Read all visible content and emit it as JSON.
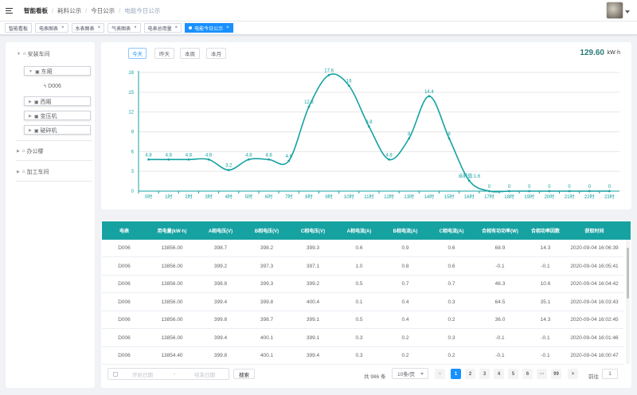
{
  "header": {
    "breadcrumbs": [
      "智能看板",
      "耗料公示",
      "今日公示",
      "电能今日公示"
    ]
  },
  "tags": [
    {
      "label": "智能看板",
      "active": false,
      "closable": false
    },
    {
      "label": "电表图表",
      "active": false,
      "closable": true
    },
    {
      "label": "水表图表",
      "active": false,
      "closable": true
    },
    {
      "label": "气表图表",
      "active": false,
      "closable": true
    },
    {
      "label": "电表总用量",
      "active": false,
      "closable": true
    },
    {
      "label": "电能今日公示",
      "active": true,
      "closable": true
    }
  ],
  "tree": {
    "root1": "安装车间",
    "child_dongzhi": "东厢",
    "leaf_d006": "D006",
    "child_xizhi": "西厢",
    "child_bianyaqi": "变压机",
    "child_posuiji": "破碎机",
    "root2": "办公楼",
    "root3": "加工车间"
  },
  "chart_controls": {
    "buttons": [
      "今天",
      "昨天",
      "本周",
      "本月"
    ],
    "active_index": 0,
    "total_value": "129.60",
    "total_unit": "kW·h"
  },
  "chart_data": {
    "type": "line",
    "x": [
      "0时",
      "1时",
      "2时",
      "3时",
      "4时",
      "5时",
      "6时",
      "7时",
      "8时",
      "9时",
      "10时",
      "11时",
      "12时",
      "13时",
      "14时",
      "15时",
      "16时",
      "17时",
      "18时",
      "19时",
      "20时",
      "21时",
      "22时",
      "23时"
    ],
    "series": [
      {
        "values": [
          4.8,
          4.8,
          4.8,
          4.8,
          3.2,
          4.8,
          4.8,
          4.6,
          12.8,
          17.6,
          16,
          9.8,
          4.8,
          8,
          14.4,
          8,
          1.6,
          0,
          0,
          0,
          0,
          0,
          0,
          0
        ],
        "labels": [
          "4.8",
          "4.8",
          "4.8",
          "4.8",
          "3.2",
          "4.8",
          "4.8",
          "4.6",
          "12.8",
          "17.6",
          "16",
          "9.8",
          "4.8",
          "8",
          "14.4",
          "8",
          "当前值:1.6",
          "0",
          "0",
          "0",
          "0",
          "0",
          "0",
          "0"
        ]
      }
    ],
    "yticks": [
      0,
      3,
      6,
      9,
      12,
      15,
      18
    ],
    "ylim": [
      0,
      18
    ],
    "grid": true,
    "color": "#17a2a2"
  },
  "table": {
    "columns": [
      "电表",
      "用电量(kW·h)",
      "A相电压(V)",
      "B相电压(V)",
      "C相电压(V)",
      "A相电流(A)",
      "B相电流(A)",
      "C相电流(A)",
      "合相有功功率(W)",
      "合相功率因数",
      "获取时间"
    ],
    "rows": [
      [
        "D006",
        "13856.00",
        "398.7",
        "398.2",
        "399.3",
        "0.6",
        "0.9",
        "0.6",
        "68.9",
        "14.3",
        "2020-09-04 16:06:39"
      ],
      [
        "D006",
        "13856.00",
        "399.2",
        "397.3",
        "397.1",
        "1.0",
        "0.8",
        "0.6",
        "-0.1",
        "-0.1",
        "2020-09-04 16:05:41"
      ],
      [
        "D006",
        "13856.00",
        "398.8",
        "399.3",
        "399.2",
        "0.5",
        "0.7",
        "0.7",
        "46.3",
        "10.6",
        "2020-09-04 16:04:42"
      ],
      [
        "D006",
        "13856.00",
        "399.4",
        "399.8",
        "400.4",
        "0.1",
        "0.4",
        "0.3",
        "64.5",
        "35.1",
        "2020-09-04 16:03:43"
      ],
      [
        "D006",
        "13856.00",
        "399.8",
        "398.7",
        "399.1",
        "0.5",
        "0.4",
        "0.2",
        "36.0",
        "14.3",
        "2020-09-04 16:02:45"
      ],
      [
        "D006",
        "13856.00",
        "399.4",
        "400.1",
        "399.1",
        "0.3",
        "0.2",
        "0.3",
        "-0.1",
        "-0.1",
        "2020-09-04 16:01:46"
      ],
      [
        "D006",
        "13854.40",
        "399.8",
        "400.1",
        "399.4",
        "0.3",
        "0.2",
        "0.2",
        "-0.1",
        "-0.1",
        "2020-09-04 16:00:47"
      ]
    ]
  },
  "footer": {
    "start_placeholder": "开始日期",
    "range_separator": "-",
    "end_placeholder": "结束日期",
    "search_label": "搜索",
    "total_text": "共 986 条",
    "page_size": "10条/页",
    "prev": "<",
    "pages": [
      "1",
      "2",
      "3",
      "4",
      "5",
      "6",
      "···",
      "99"
    ],
    "current_page": "1",
    "next": ">",
    "goto_label": "前往",
    "goto_value": "1"
  }
}
